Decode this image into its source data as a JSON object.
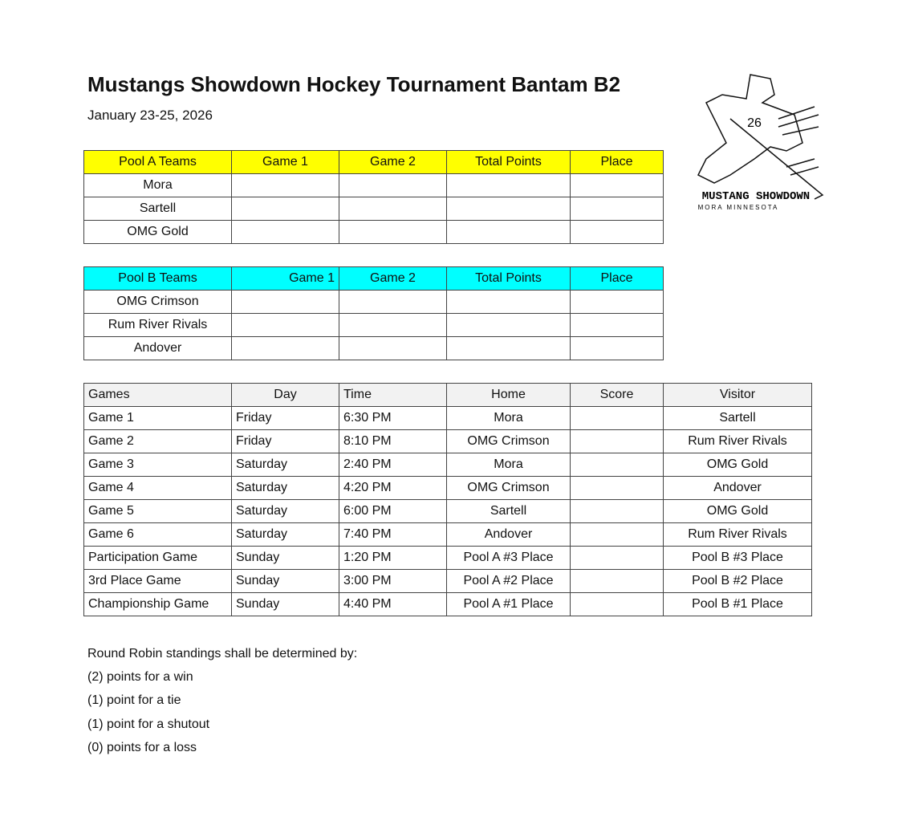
{
  "title": "Mustangs Showdown Hockey Tournament Bantam B2",
  "dates": "January 23-25, 2026",
  "logo": {
    "text": "MUSTANG SHOWDOWN",
    "subtext": "MORA MINNESOTA",
    "jersey": "26"
  },
  "poolA": {
    "headers": [
      "Pool A Teams",
      "Game 1",
      "Game 2",
      "Total Points",
      "Place"
    ],
    "teams": [
      "Mora",
      "Sartell",
      "OMG Gold"
    ]
  },
  "poolB": {
    "headers": [
      "Pool B Teams",
      "Game 1",
      "Game 2",
      "Total Points",
      "Place"
    ],
    "teams": [
      "OMG Crimson",
      "Rum River Rivals",
      "Andover"
    ]
  },
  "schedule": {
    "headers": [
      "Games",
      "Day",
      "Time",
      "Home",
      "Score",
      "Visitor"
    ],
    "rows": [
      [
        "Game 1",
        "Friday",
        "6:30 PM",
        "Mora",
        "",
        "Sartell"
      ],
      [
        "Game 2",
        "Friday",
        "8:10 PM",
        "OMG Crimson",
        "",
        "Rum River Rivals"
      ],
      [
        "Game 3",
        "Saturday",
        "2:40 PM",
        "Mora",
        "",
        "OMG Gold"
      ],
      [
        "Game 4",
        "Saturday",
        "4:20 PM",
        "OMG Crimson",
        "",
        "Andover"
      ],
      [
        "Game 5",
        "Saturday",
        "6:00 PM",
        "Sartell",
        "",
        "OMG Gold"
      ],
      [
        "Game 6",
        "Saturday",
        "7:40 PM",
        "Andover",
        "",
        "Rum River Rivals"
      ],
      [
        "Participation Game",
        "Sunday",
        "1:20 PM",
        "Pool A #3 Place",
        "",
        "Pool B #3 Place"
      ],
      [
        "3rd Place Game",
        "Sunday",
        "3:00 PM",
        "Pool A #2 Place",
        "",
        "Pool B #2 Place"
      ],
      [
        "Championship Game",
        "Sunday",
        "4:40 PM",
        "Pool A #1 Place",
        "",
        "Pool B #1 Place"
      ]
    ]
  },
  "rules": [
    "Round Robin standings shall be determined by:",
    "(2) points for a win",
    "(1) point for a tie",
    "(1) point for a shutout",
    "(0) points for a loss"
  ]
}
